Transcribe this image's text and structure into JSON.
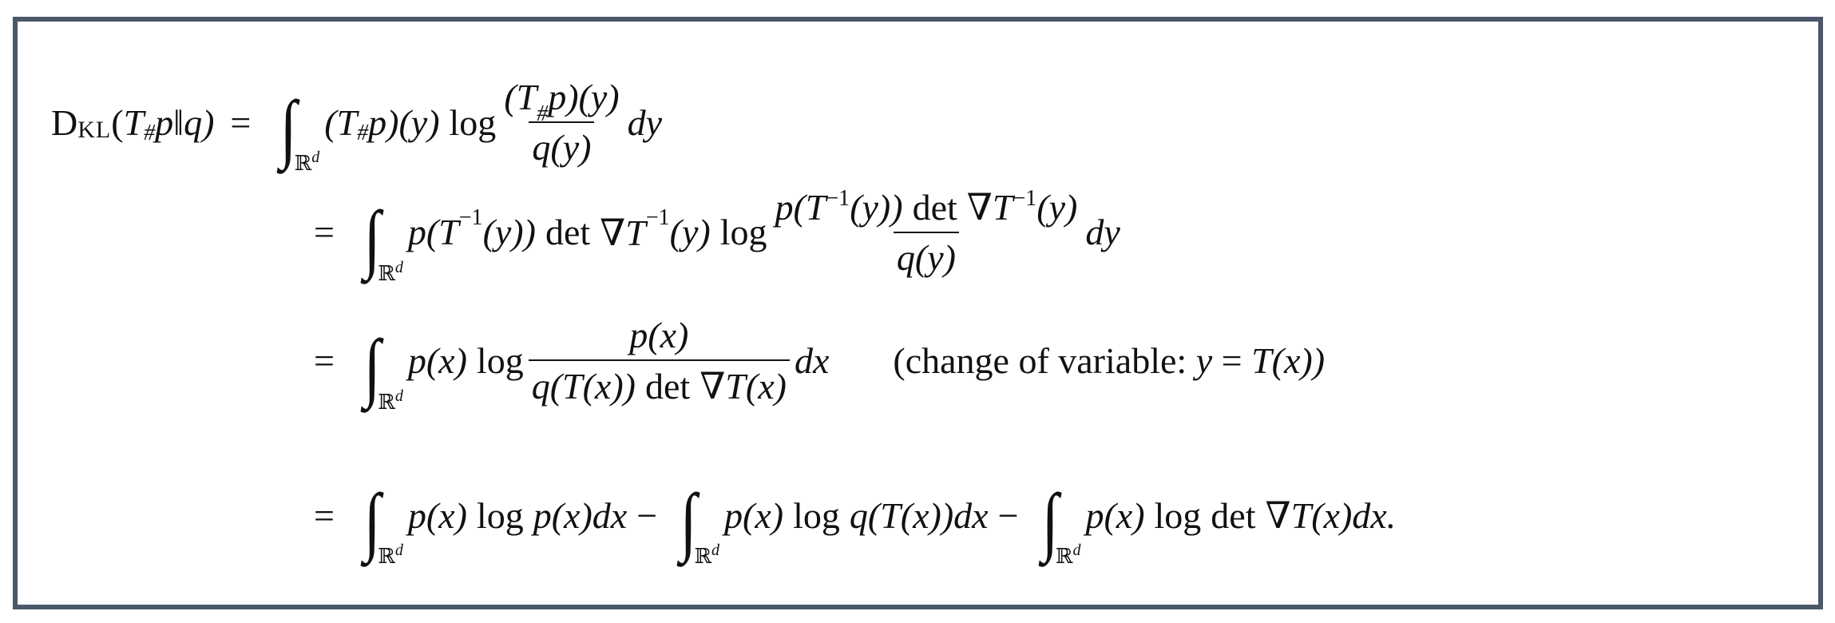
{
  "equation": {
    "lhs": {
      "D": "D",
      "KL": "KL",
      "open": "(",
      "T": "T",
      "sharp": "#",
      "rest": "p‖q)"
    },
    "eq": "=",
    "integral": {
      "sign": "∫",
      "domain": "ℝ",
      "domain_sup": "d"
    },
    "log": "log",
    "det": "det",
    "line1": {
      "term": "(T",
      "sharp": "#",
      "term2": "p)(y)",
      "num": "(T",
      "num2": "p)(y)",
      "den": "q(y)",
      "d": "dy"
    },
    "line2": {
      "a": "p(T",
      "a_sup": "−1",
      "a2": "(y))",
      "nabla": "∇T",
      "b_sup": "−1",
      "b2": "(y)",
      "num_a": "p(T",
      "num_a2": "(y))",
      "num_b": "∇T",
      "num_b2": "(y)",
      "den": "q(y)",
      "d": "dy"
    },
    "line3": {
      "a": "p(x)",
      "num": "p(x)",
      "den_a": "q(T(x))",
      "den_b": "∇T(x)",
      "d": "dx",
      "note": "(change of variable: ",
      "note_y": "y",
      "note_eq": " = ",
      "note_T": "T(x))"
    },
    "line4": {
      "t1": "p(x)",
      "t1b": "p(x)dx",
      "minus": "−",
      "t2": "p(x)",
      "t2b": "q(T(x))dx",
      "t3": "p(x)",
      "t3b": "∇T(x)dx."
    }
  }
}
